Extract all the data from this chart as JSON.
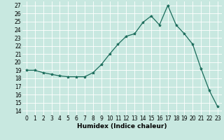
{
  "x": [
    0,
    1,
    2,
    3,
    4,
    5,
    6,
    7,
    8,
    9,
    10,
    11,
    12,
    13,
    14,
    15,
    16,
    17,
    18,
    19,
    20,
    21,
    22,
    23
  ],
  "y": [
    19,
    19,
    18.7,
    18.5,
    18.3,
    18.2,
    18.2,
    18.2,
    18.7,
    19.7,
    21.0,
    22.2,
    23.2,
    23.5,
    24.9,
    25.7,
    24.6,
    27.0,
    24.6,
    23.5,
    22.2,
    19.2,
    16.5,
    14.5
  ],
  "line_color": "#1a6b5a",
  "marker": "*",
  "marker_size": 3,
  "bg_color": "#c8e8e0",
  "grid_color": "#ffffff",
  "xlabel": "Humidex (Indice chaleur)",
  "ylim": [
    13.5,
    27.5
  ],
  "xlim": [
    -0.5,
    23.5
  ],
  "yticks": [
    14,
    15,
    16,
    17,
    18,
    19,
    20,
    21,
    22,
    23,
    24,
    25,
    26,
    27
  ],
  "xticks": [
    0,
    1,
    2,
    3,
    4,
    5,
    6,
    7,
    8,
    9,
    10,
    11,
    12,
    13,
    14,
    15,
    16,
    17,
    18,
    19,
    20,
    21,
    22,
    23
  ],
  "label_fontsize": 6.5,
  "tick_fontsize": 5.5
}
